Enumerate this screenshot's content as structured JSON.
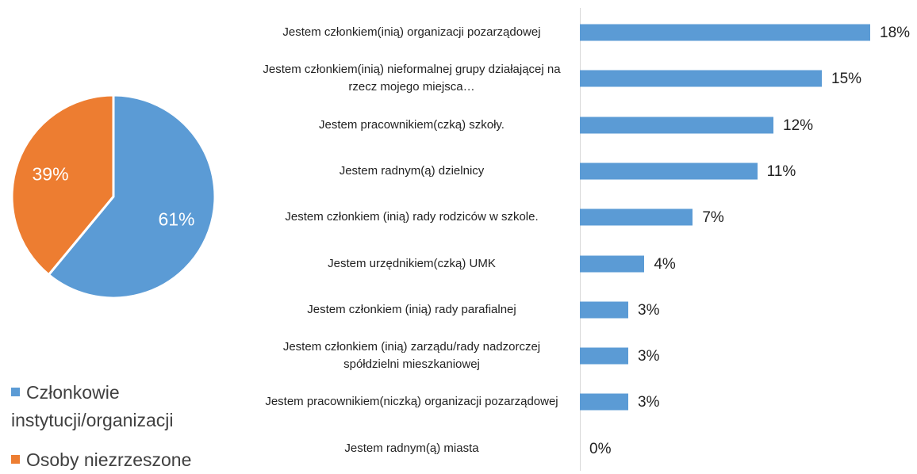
{
  "chart_data": [
    {
      "type": "pie",
      "series": [
        {
          "name": "Członkowie instytucji/organizacji",
          "color": "#5b9bd5",
          "values": [
            61
          ],
          "value_labels": [
            "61%"
          ]
        },
        {
          "name": "Osoby niezrzeszone",
          "color": "#ed7d31",
          "values": [
            39
          ],
          "value_labels": [
            "39%"
          ]
        }
      ]
    },
    {
      "type": "bar",
      "orientation": "horizontal",
      "color": "#5b9bd5",
      "categories": [
        "Jestem członkiem(inią) organizacji pozarządowej",
        "Jestem członkiem(inią) nieformalnej grupy działającej na rzecz mojego miejsca…",
        "Jestem pracownikiem(czką) szkoły.",
        "Jestem radnym(ą) dzielnicy",
        "Jestem członkiem (inią) rady rodziców w szkole.",
        "Jestem urzędnikiem(czką) UMK",
        "Jestem członkiem (inią) rady parafialnej",
        "Jestem członkiem (inią)  zarządu/rady nadzorczej spółdzielni mieszkaniowej",
        "Jestem  pracownikiem(niczką) organizacji pozarządowej",
        "Jestem radnym(ą) miasta"
      ],
      "values": [
        18,
        15,
        12,
        11,
        7,
        4,
        3,
        3,
        3,
        0
      ],
      "value_labels": [
        "18%",
        "15%",
        "12%",
        "11%",
        "7%",
        "4%",
        "3%",
        "3%",
        "3%",
        "0%"
      ]
    }
  ]
}
